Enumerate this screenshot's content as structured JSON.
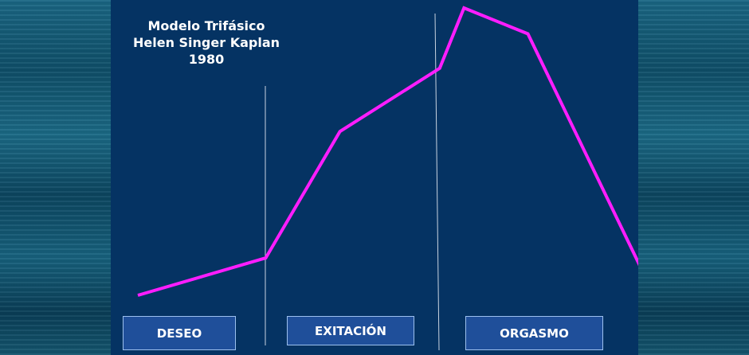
{
  "title_lines": [
    "Modelo Trifásico",
    "Helen Singer Kaplan",
    "1980"
  ],
  "phases": [
    "DESEO",
    "EXITACIÓN",
    "ORGASMO"
  ],
  "colors": {
    "curve": "#ff1dff",
    "slide_background": "#053363",
    "box_fill": "#1f4f9a",
    "box_border": "#9cc0ee",
    "divider": "#c9d3e0"
  },
  "curve": {
    "note": "arousal level per stage, relative 0-100",
    "points": [
      {
        "stage": 0.0,
        "level": 0
      },
      {
        "stage": 1.0,
        "level": 13
      },
      {
        "stage": 1.58,
        "level": 57
      },
      {
        "stage": 2.36,
        "level": 79
      },
      {
        "stage": 2.55,
        "level": 100
      },
      {
        "stage": 3.05,
        "level": 91
      },
      {
        "stage": 3.95,
        "level": 8
      }
    ]
  }
}
